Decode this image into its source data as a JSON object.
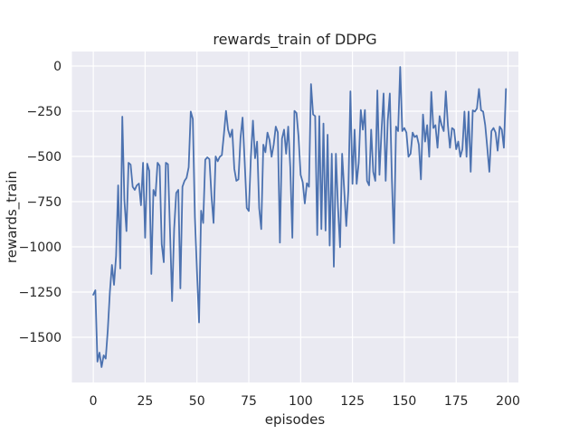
{
  "chart_data": {
    "type": "line",
    "title": "rewards_train of DDPG",
    "xlabel": "episodes",
    "ylabel": "rewards_train",
    "grid": true,
    "legend_position": "none",
    "xlim": [
      -10.3,
      205.0
    ],
    "ylim": [
      -1750,
      80
    ],
    "xticks": [
      0,
      25,
      50,
      75,
      100,
      125,
      150,
      175,
      200
    ],
    "yticks": [
      0,
      -250,
      -500,
      -750,
      -1000,
      -1250,
      -1500
    ],
    "style": {
      "axes_background": "#eaeaf2",
      "grid_color": "#ffffff",
      "line_color": "#4c72b0",
      "text_color": "#262626",
      "figure_background": "#ffffff"
    },
    "series": [
      {
        "name": "rewards_train",
        "x_start": 0,
        "x_step": 1,
        "values": [
          -1265,
          -1240,
          -1635,
          -1585,
          -1665,
          -1600,
          -1618,
          -1460,
          -1250,
          -1100,
          -1210,
          -1050,
          -660,
          -1120,
          -280,
          -743,
          -913,
          -535,
          -545,
          -668,
          -685,
          -660,
          -650,
          -770,
          -535,
          -950,
          -540,
          -580,
          -1150,
          -685,
          -718,
          -535,
          -552,
          -985,
          -1085,
          -535,
          -543,
          -910,
          -1300,
          -900,
          -702,
          -685,
          -1230,
          -668,
          -635,
          -618,
          -560,
          -252,
          -293,
          -835,
          -1135,
          -1418,
          -800,
          -868,
          -518,
          -505,
          -515,
          -718,
          -868,
          -500,
          -527,
          -502,
          -493,
          -377,
          -248,
          -352,
          -393,
          -352,
          -568,
          -635,
          -627,
          -398,
          -285,
          -527,
          -785,
          -802,
          -502,
          -302,
          -510,
          -418,
          -785,
          -902,
          -435,
          -477,
          -368,
          -410,
          -502,
          -435,
          -335,
          -368,
          -977,
          -402,
          -352,
          -485,
          -335,
          -560,
          -950,
          -248,
          -260,
          -393,
          -602,
          -643,
          -760,
          -648,
          -668,
          -100,
          -268,
          -277,
          -935,
          -277,
          -902,
          -318,
          -910,
          -380,
          -993,
          -485,
          -1110,
          -485,
          -780,
          -1002,
          -485,
          -685,
          -885,
          -690,
          -140,
          -652,
          -352,
          -652,
          -535,
          -243,
          -352,
          -243,
          -635,
          -660,
          -352,
          -585,
          -635,
          -135,
          -602,
          -360,
          -152,
          -635,
          -302,
          -152,
          -627,
          -980,
          -335,
          -360,
          -5,
          -360,
          -343,
          -368,
          -502,
          -485,
          -368,
          -393,
          -385,
          -435,
          -627,
          -268,
          -418,
          -327,
          -502,
          -143,
          -343,
          -327,
          -452,
          -277,
          -327,
          -360,
          -140,
          -327,
          -452,
          -343,
          -352,
          -460,
          -418,
          -502,
          -460,
          -252,
          -502,
          -252,
          -585,
          -245,
          -252,
          -235,
          -127,
          -245,
          -252,
          -327,
          -452,
          -585,
          -360,
          -343,
          -368,
          -468,
          -335,
          -352,
          -452,
          -127
        ]
      }
    ]
  }
}
